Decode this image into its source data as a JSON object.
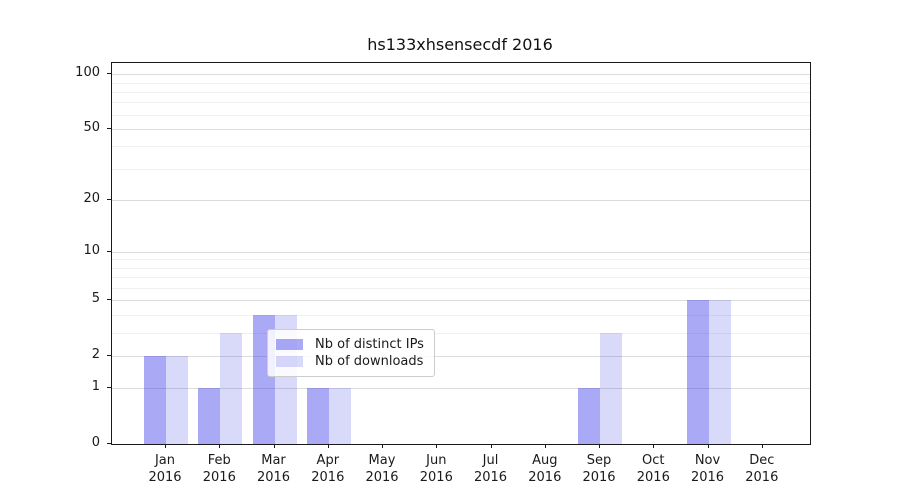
{
  "figure": {
    "title": "hs133xhsensecdf 2016",
    "background": "#ffffff"
  },
  "chart_data": {
    "type": "bar",
    "title": "hs133xhsensecdf 2016",
    "categories": [
      "Jan 2016",
      "Feb 2016",
      "Mar 2016",
      "Apr 2016",
      "May 2016",
      "Jun 2016",
      "Jul 2016",
      "Aug 2016",
      "Sep 2016",
      "Oct 2016",
      "Nov 2016",
      "Dec 2016"
    ],
    "x_tick_months": [
      "Jan",
      "Feb",
      "Mar",
      "Apr",
      "May",
      "Jun",
      "Jul",
      "Aug",
      "Sep",
      "Oct",
      "Nov",
      "Dec"
    ],
    "x_tick_year": "2016",
    "series": [
      {
        "name": "Nb of distinct IPs",
        "color": "rgba(51,51,230,0.42)",
        "color_on_white": "#a9a9f6",
        "values": [
          2,
          1,
          4,
          1,
          0,
          0,
          0,
          0,
          1,
          0,
          5,
          0
        ]
      },
      {
        "name": "Nb of downloads",
        "color": "rgba(51,51,230,0.19)",
        "color_on_white": "#d9d9f7",
        "values": [
          2,
          3,
          4,
          1,
          0,
          0,
          0,
          0,
          3,
          0,
          5,
          0
        ]
      }
    ],
    "yscale": "log1p",
    "ylabel": "",
    "xlabel": "",
    "ylim": [
      0,
      115
    ],
    "y_ticks": [
      100,
      50,
      20,
      10,
      5,
      2,
      1,
      0
    ],
    "y_minor_gridlines": [
      3,
      4,
      6,
      7,
      8,
      9,
      30,
      40,
      60,
      70,
      80,
      90
    ],
    "grid": true,
    "legend": {
      "position": "inside-lower-center",
      "entries": [
        "Nb of distinct IPs",
        "Nb of downloads"
      ]
    }
  },
  "style": {
    "spine_color": "#1a1a1a",
    "grid_major_color": "#dcdcdc",
    "grid_minor_color": "#f0f0f0",
    "tick_label_color": "#1a1a1a",
    "legend_border_color": "#cccccc"
  }
}
